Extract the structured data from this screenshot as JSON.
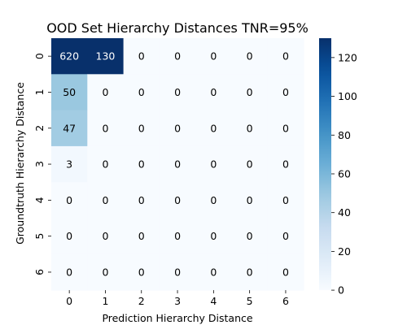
{
  "chart_data": {
    "type": "heatmap",
    "title": "OOD Set Hierarchy Distances TNR=95%",
    "xlabel": "Prediction Hierarchy Distance",
    "ylabel": "Groundtruth Hierarchy Distance",
    "x_categories": [
      "0",
      "1",
      "2",
      "3",
      "4",
      "5",
      "6"
    ],
    "y_categories": [
      "0",
      "1",
      "2",
      "3",
      "4",
      "5",
      "6"
    ],
    "values": [
      [
        620,
        130,
        0,
        0,
        0,
        0,
        0
      ],
      [
        50,
        0,
        0,
        0,
        0,
        0,
        0
      ],
      [
        47,
        0,
        0,
        0,
        0,
        0,
        0
      ],
      [
        3,
        0,
        0,
        0,
        0,
        0,
        0
      ],
      [
        0,
        0,
        0,
        0,
        0,
        0,
        0
      ],
      [
        0,
        0,
        0,
        0,
        0,
        0,
        0
      ],
      [
        0,
        0,
        0,
        0,
        0,
        0,
        0
      ]
    ],
    "colormap": "Blues",
    "color_range": [
      0,
      130
    ],
    "colorbar_ticks": [
      "0",
      "20",
      "40",
      "60",
      "80",
      "100",
      "120"
    ],
    "colorbar_tick_values": [
      0,
      20,
      40,
      60,
      80,
      100,
      120
    ],
    "grid": false
  }
}
